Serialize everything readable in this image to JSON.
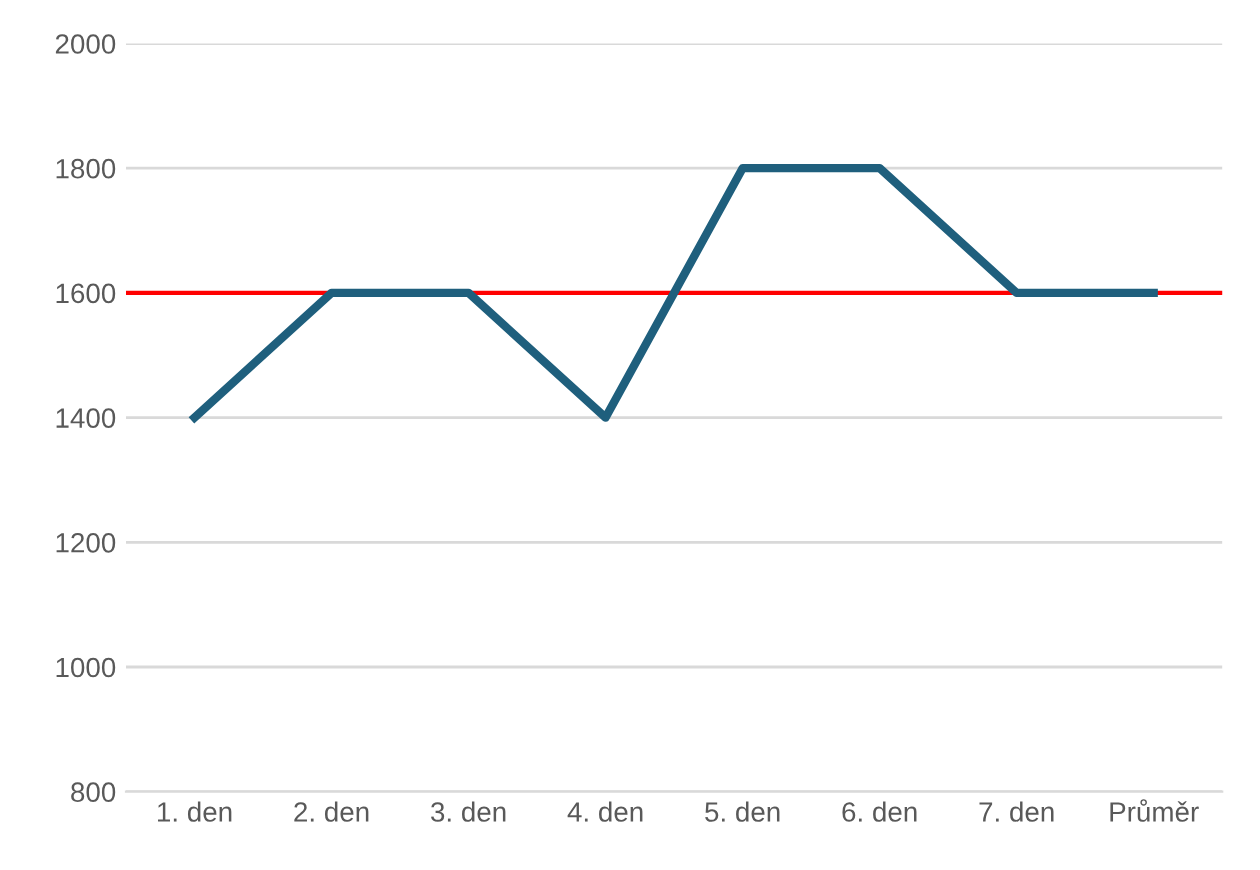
{
  "chart_data": {
    "type": "line",
    "categories": [
      "1. den",
      "2. den",
      "3. den",
      "4. den",
      "5. den",
      "6. den",
      "7. den",
      "Průměr"
    ],
    "series": [
      {
        "color": "#1f5f7d",
        "values": [
          1400,
          1600,
          1600,
          1400,
          1800,
          1800,
          1600,
          1600
        ]
      }
    ],
    "ylim": [
      800,
      2000
    ],
    "yticks": [
      800,
      1000,
      1200,
      1400,
      1600,
      1800,
      2000
    ],
    "grid": "y",
    "marker": "none",
    "line_style": "solid",
    "ref_lines": [
      {
        "axis": "y",
        "value": 1600,
        "color": "#ff0000",
        "line_style": "solid"
      }
    ]
  }
}
